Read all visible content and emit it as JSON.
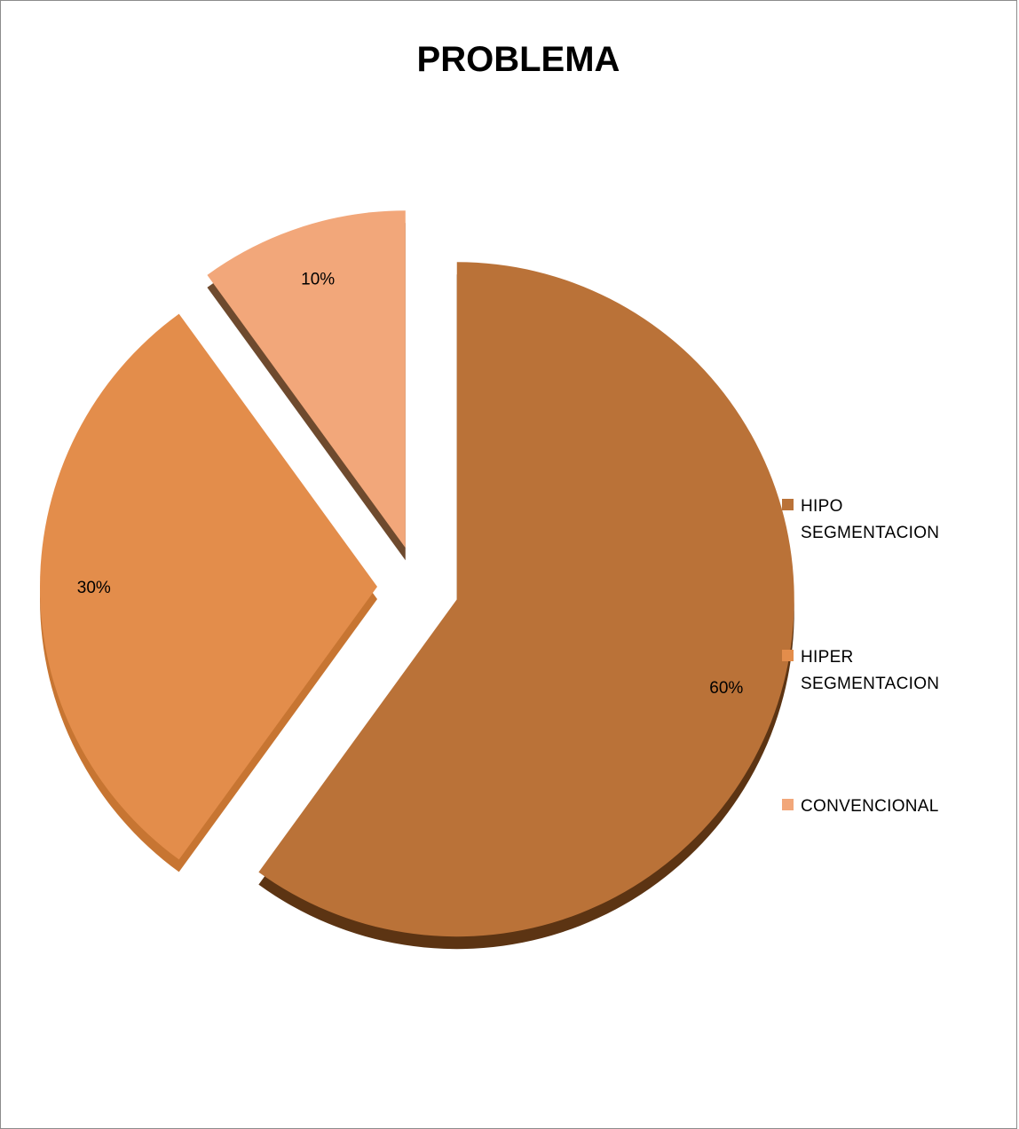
{
  "chart_data": {
    "type": "pie",
    "title": "PROBLEMA",
    "exploded": true,
    "three_d": true,
    "legend_position": "right",
    "slices": [
      {
        "label": "HIPO SEGMENTACION",
        "value": 60,
        "display": "60%",
        "color": "#BA7238",
        "side_color": "#5C3413"
      },
      {
        "label": "HIPER SEGMENTACION",
        "value": 30,
        "display": "30%",
        "color": "#E38D4B",
        "side_color": "#C77532"
      },
      {
        "label": "CONVENCIONAL",
        "value": 10,
        "display": "10%",
        "color": "#F2A77A",
        "side_color": "#6E4A2E"
      }
    ]
  }
}
